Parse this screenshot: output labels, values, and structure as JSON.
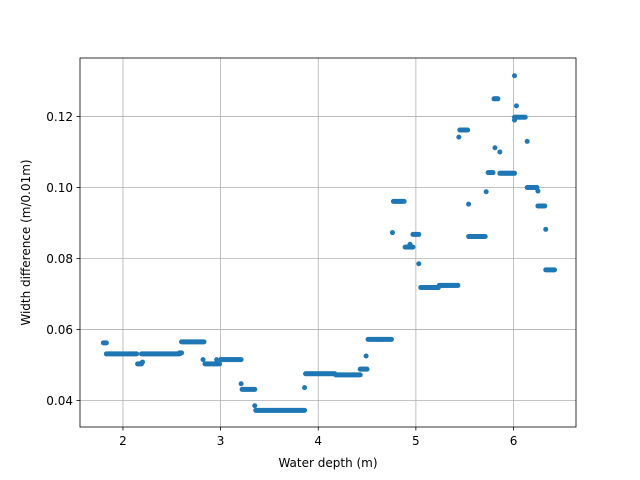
{
  "chart_data": {
    "type": "scatter",
    "title": "",
    "xlabel": "Water depth (m)",
    "ylabel": "Width difference (m/0.01m)",
    "xlim": [
      1.56,
      6.64
    ],
    "ylim": [
      0.0325,
      0.1365
    ],
    "xticks": [
      2,
      3,
      4,
      5,
      6
    ],
    "xtick_labels": [
      "2",
      "3",
      "4",
      "5",
      "6"
    ],
    "yticks": [
      0.04,
      0.06,
      0.08,
      0.1,
      0.12
    ],
    "ytick_labels": [
      "0.04",
      "0.06",
      "0.08",
      "0.10",
      "0.12"
    ],
    "grid": true,
    "marker_color": "#1f77b4",
    "segments": [
      {
        "x_start": 1.8,
        "x_end": 1.83,
        "y": 0.0562
      },
      {
        "x_start": 1.83,
        "x_end": 2.13,
        "y": 0.0531
      },
      {
        "x_start": 2.15,
        "x_end": 2.19,
        "y": 0.0503
      },
      {
        "x_start": 2.19,
        "x_end": 2.58,
        "y": 0.0531
      },
      {
        "x_start": 2.58,
        "x_end": 2.6,
        "y": 0.0534
      },
      {
        "x_start": 2.6,
        "x_end": 2.83,
        "y": 0.0565
      },
      {
        "x_start": 2.84,
        "x_end": 2.99,
        "y": 0.0503
      },
      {
        "x_start": 3.0,
        "x_end": 3.21,
        "y": 0.0515
      },
      {
        "x_start": 3.22,
        "x_end": 3.35,
        "y": 0.0431
      },
      {
        "x_start": 3.36,
        "x_end": 3.86,
        "y": 0.0372
      },
      {
        "x_start": 3.87,
        "x_end": 4.17,
        "y": 0.0475
      },
      {
        "x_start": 4.18,
        "x_end": 4.43,
        "y": 0.0472
      },
      {
        "x_start": 4.43,
        "x_end": 4.5,
        "y": 0.0488
      },
      {
        "x_start": 4.51,
        "x_end": 4.75,
        "y": 0.0572
      },
      {
        "x_start": 4.77,
        "x_end": 4.88,
        "y": 0.0961
      },
      {
        "x_start": 4.89,
        "x_end": 4.97,
        "y": 0.0832
      },
      {
        "x_start": 4.97,
        "x_end": 5.03,
        "y": 0.0868
      },
      {
        "x_start": 5.05,
        "x_end": 5.23,
        "y": 0.0718
      },
      {
        "x_start": 5.24,
        "x_end": 5.43,
        "y": 0.0724
      },
      {
        "x_start": 5.45,
        "x_end": 5.53,
        "y": 0.1162
      },
      {
        "x_start": 5.54,
        "x_end": 5.71,
        "y": 0.0862
      },
      {
        "x_start": 5.74,
        "x_end": 5.79,
        "y": 0.1042
      },
      {
        "x_start": 5.8,
        "x_end": 5.84,
        "y": 0.125
      },
      {
        "x_start": 5.86,
        "x_end": 6.01,
        "y": 0.104
      },
      {
        "x_start": 6.01,
        "x_end": 6.12,
        "y": 0.1198
      },
      {
        "x_start": 6.14,
        "x_end": 6.24,
        "y": 0.1
      },
      {
        "x_start": 6.25,
        "x_end": 6.32,
        "y": 0.0948
      },
      {
        "x_start": 6.33,
        "x_end": 6.42,
        "y": 0.0768
      }
    ],
    "points": [
      [
        2.14,
        0.0531
      ],
      [
        2.2,
        0.0508
      ],
      [
        2.82,
        0.0515
      ],
      [
        2.96,
        0.0515
      ],
      [
        3.21,
        0.0447
      ],
      [
        3.35,
        0.0385
      ],
      [
        3.86,
        0.0436
      ],
      [
        4.49,
        0.0525
      ],
      [
        4.76,
        0.0873
      ],
      [
        4.94,
        0.084
      ],
      [
        5.03,
        0.0785
      ],
      [
        5.44,
        0.1142
      ],
      [
        5.54,
        0.0953
      ],
      [
        5.72,
        0.0988
      ],
      [
        5.81,
        0.1112
      ],
      [
        5.86,
        0.11
      ],
      [
        6.01,
        0.1315
      ],
      [
        6.03,
        0.123
      ],
      [
        6.01,
        0.119
      ],
      [
        6.14,
        0.113
      ],
      [
        6.25,
        0.099
      ],
      [
        6.33,
        0.0882
      ]
    ]
  }
}
